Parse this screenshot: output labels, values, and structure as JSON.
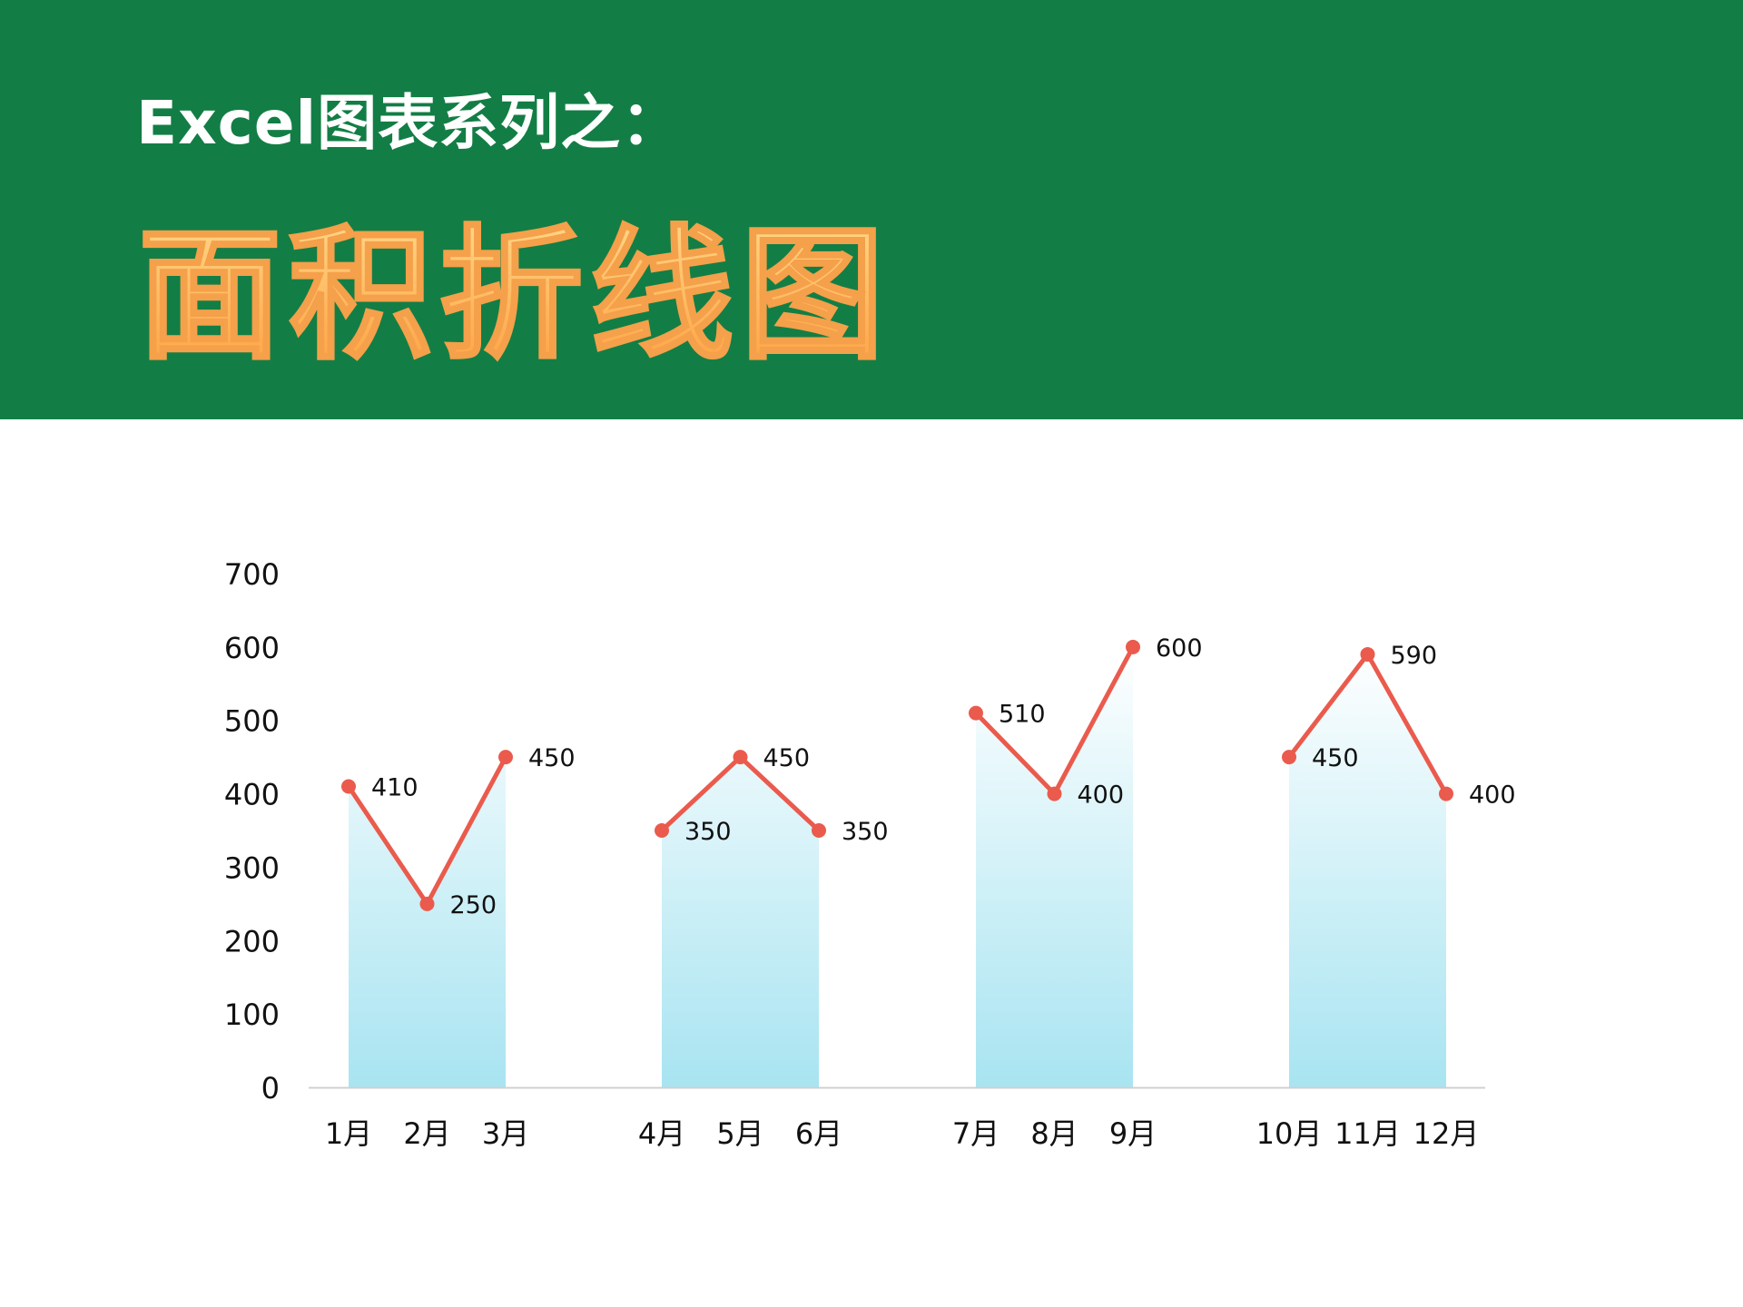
{
  "header": {
    "kicker": "Excel图表系列之：",
    "title": "面积折线图",
    "banner_color": "#127e45",
    "title_gradient": [
      "#ffd98a",
      "#ff9f3f"
    ],
    "title_stroke": "#f5a04a"
  },
  "chart_data": {
    "type": "area",
    "categories": [
      "1月",
      "2月",
      "3月",
      "4月",
      "5月",
      "6月",
      "7月",
      "8月",
      "9月",
      "10月",
      "11月",
      "12月"
    ],
    "groups": [
      [
        0,
        1,
        2
      ],
      [
        3,
        4,
        5
      ],
      [
        6,
        7,
        8
      ],
      [
        9,
        10,
        11
      ]
    ],
    "series": [
      {
        "values": [
          410,
          250,
          450,
          350,
          450,
          350,
          510,
          400,
          600,
          450,
          590,
          400
        ]
      }
    ],
    "ylim": [
      0,
      700
    ],
    "yticks": [
      0,
      100,
      200,
      300,
      400,
      500,
      600,
      700
    ],
    "data_labels": true,
    "grid": false,
    "legend": "none",
    "line_color": "#ea5b4d",
    "area_gradient": [
      "#ffffff",
      "#a8e4f1"
    ],
    "axis_color": "#d0d0d0"
  }
}
